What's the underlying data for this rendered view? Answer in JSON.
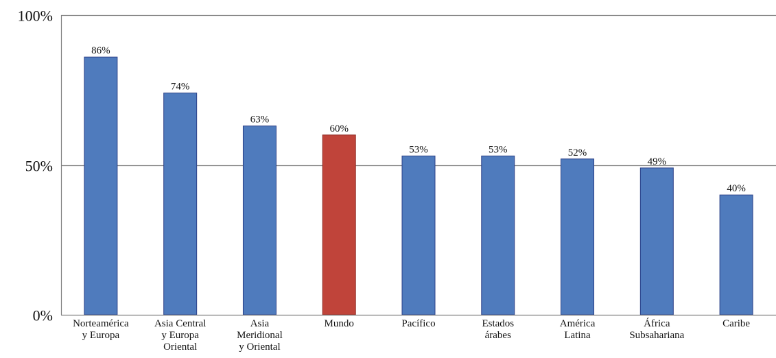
{
  "chart_data": {
    "type": "bar",
    "categories": [
      [
        "Norteamérica",
        "y Europa"
      ],
      [
        "Asia Central",
        "y Europa",
        "Oriental"
      ],
      [
        "Asia",
        "Meridional",
        "y Oriental"
      ],
      [
        "Mundo"
      ],
      [
        "Pacífico"
      ],
      [
        "Estados",
        "árabes"
      ],
      [
        "América",
        "Latina"
      ],
      [
        "África",
        "Subsahariana"
      ],
      [
        "Caribe"
      ]
    ],
    "values": [
      86,
      74,
      63,
      60,
      53,
      53,
      52,
      49,
      40
    ],
    "value_labels": [
      "86%",
      "74%",
      "63%",
      "60%",
      "53%",
      "53%",
      "52%",
      "49%",
      "40%"
    ],
    "highlight_index": 3,
    "ylim": [
      0,
      100
    ],
    "yticks": [
      0,
      50,
      100
    ],
    "ytick_labels": [
      "0%",
      "50%",
      "100%"
    ],
    "grid": "horizontal",
    "legend": "none",
    "colors": {
      "bar": "#4f7bbd",
      "bar_edge": "#2b3f87",
      "highlight": "#c0443a",
      "highlight_edge": "#8e2c24",
      "axis": "#7f7f7f"
    }
  }
}
